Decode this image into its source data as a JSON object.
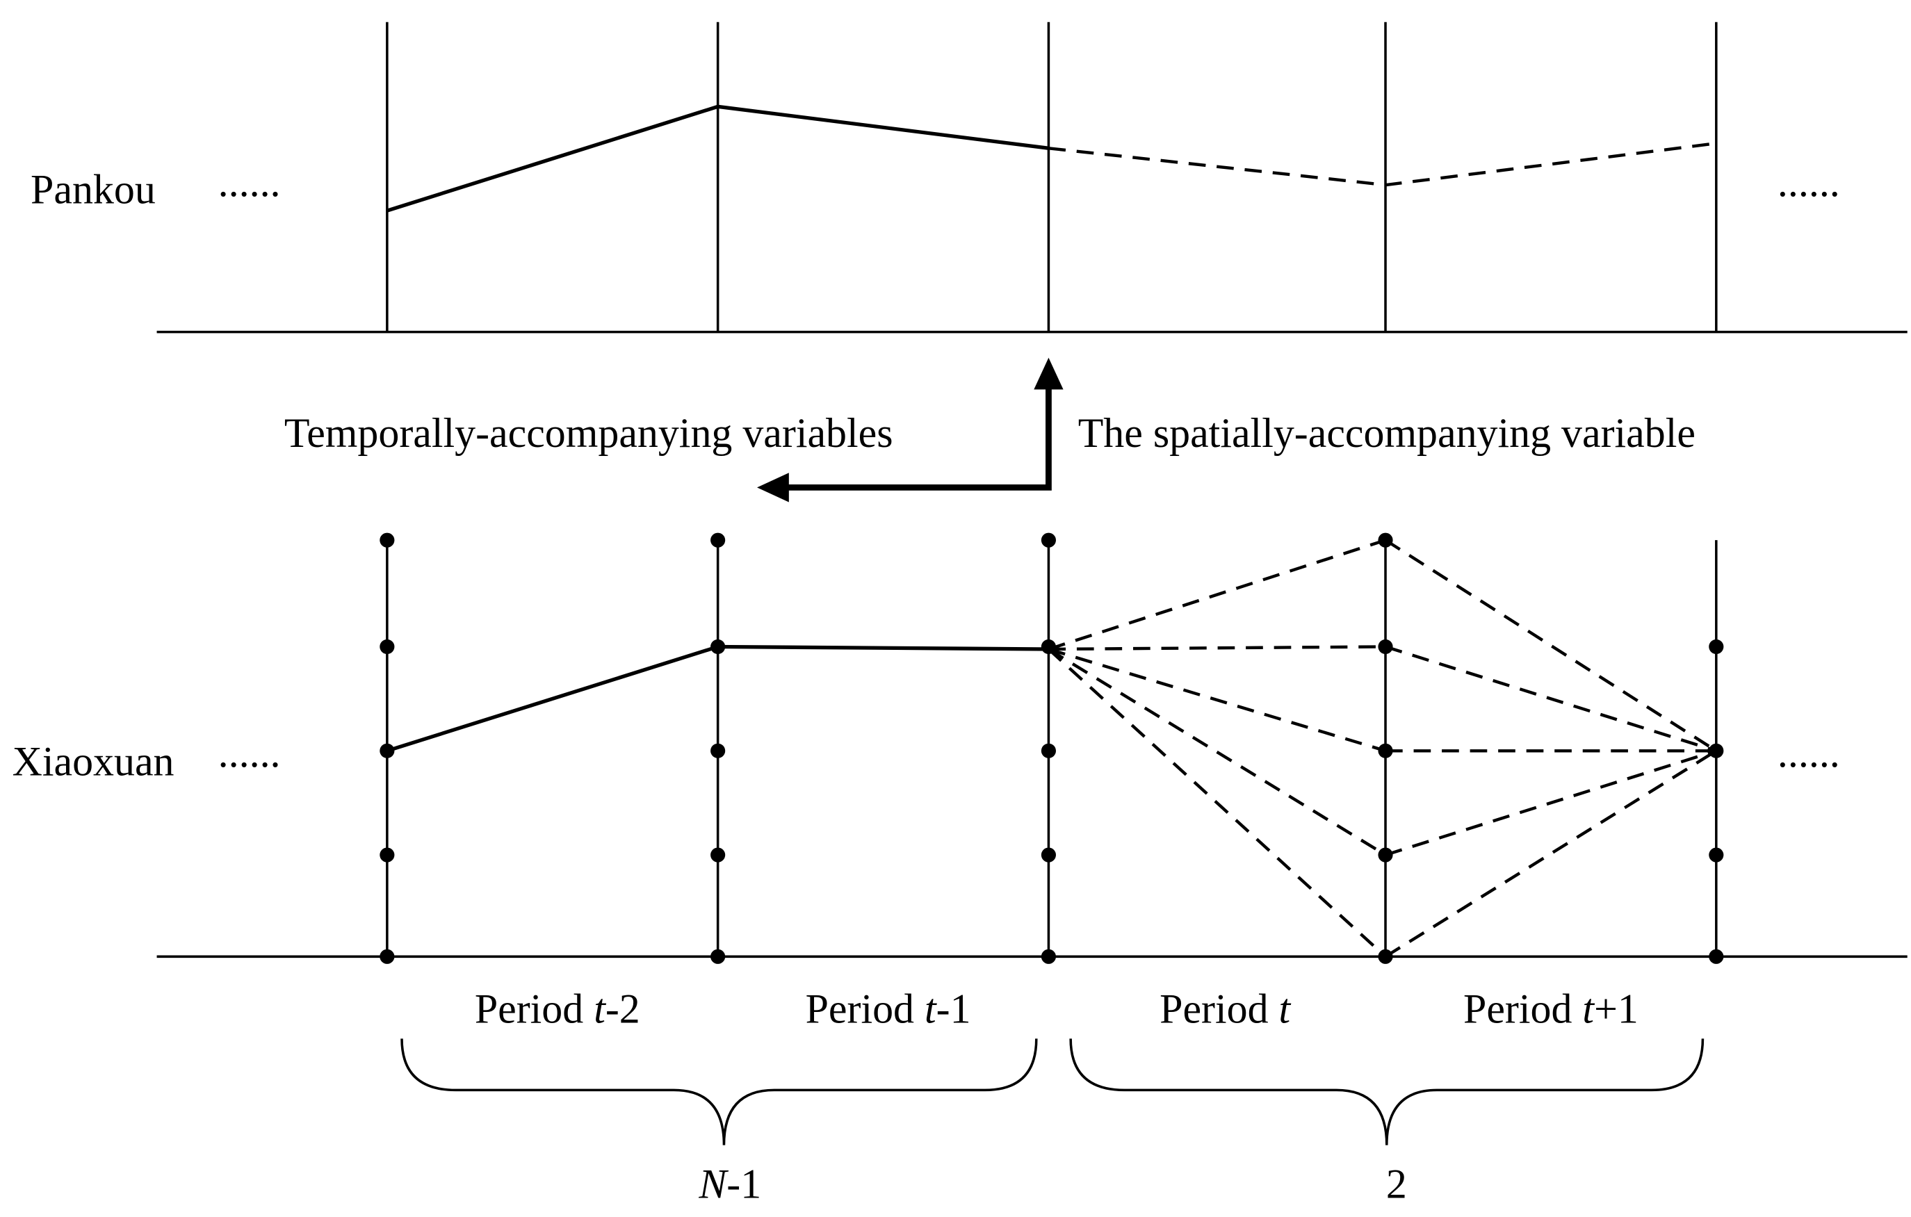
{
  "rows": [
    {
      "label": "Pankou",
      "ellipsis_left": "......",
      "ellipsis_right": "......"
    },
    {
      "label": "Xiaoxuan",
      "ellipsis_left": "......",
      "ellipsis_right": "......"
    }
  ],
  "arrows": {
    "temporal": "Temporally-accompanying variables",
    "spatial": "The spatially-accompanying variable"
  },
  "periods": [
    {
      "text": "Period ",
      "var": "t",
      "suffix": "-2"
    },
    {
      "text": "Period ",
      "var": "t",
      "suffix": "-1"
    },
    {
      "text": "Period ",
      "var": "t"
    },
    {
      "text": "Period ",
      "var": "t",
      "suffix": "+1"
    }
  ],
  "groups": [
    {
      "var": "N",
      "suffix": "-1"
    },
    {
      "text": "2"
    }
  ]
}
